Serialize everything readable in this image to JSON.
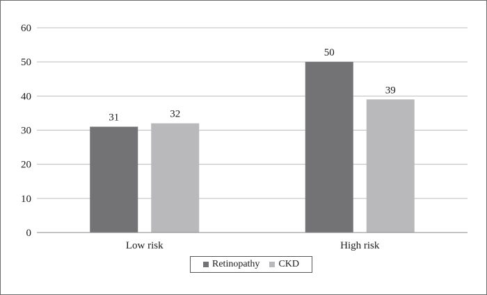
{
  "chart_data": {
    "type": "bar",
    "categories": [
      "Low risk",
      "High risk"
    ],
    "series": [
      {
        "name": "Retinopathy",
        "values": [
          31,
          50
        ],
        "color": "#737376"
      },
      {
        "name": "CKD",
        "values": [
          32,
          39
        ],
        "color": "#b9b9bb"
      }
    ],
    "title": "",
    "xlabel": "",
    "ylabel": "",
    "ylim": [
      0,
      60
    ],
    "yticks": [
      0,
      10,
      20,
      30,
      40,
      50,
      60
    ],
    "grid": true,
    "legend_position": "bottom-center"
  }
}
